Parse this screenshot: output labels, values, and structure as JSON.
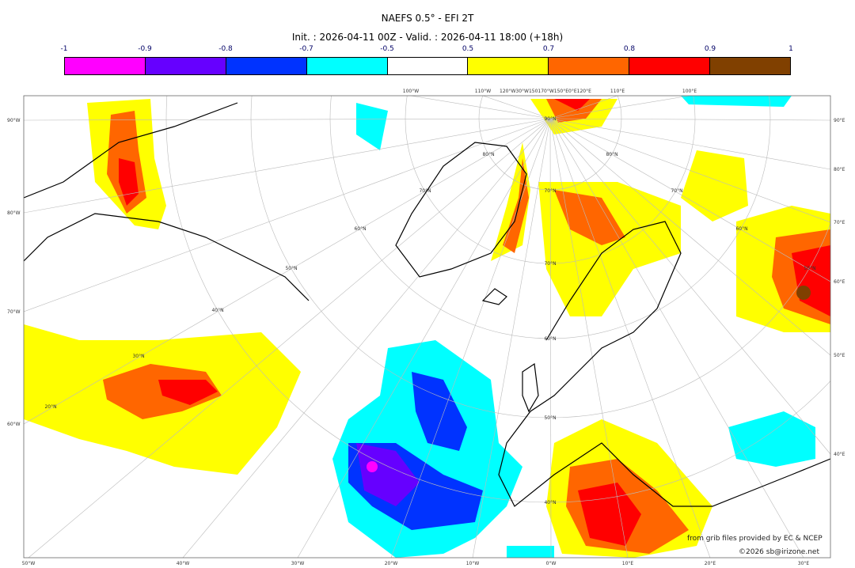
{
  "title": "NAEFS 0.5° - EFI 2T",
  "subtitle": "Init. : 2026-04-11 00Z - Valid. : 2026-04-11 18:00 (+18h)",
  "colorbar": {
    "ticks": [
      "-1",
      "-0.9",
      "-0.8",
      "-0.7",
      "-0.5",
      "0.5",
      "0.7",
      "0.8",
      "0.9",
      "1"
    ],
    "colors": [
      "#ff00ff",
      "#6600ff",
      "#0033ff",
      "#00ffff",
      "#ffffff",
      "#ffff00",
      "#ff6600",
      "#ff0000",
      "#804000"
    ]
  },
  "map": {
    "left_labels": [
      "90°W",
      "80°W",
      "70°W",
      "60°W"
    ],
    "right_labels": [
      "90°E",
      "80°E",
      "70°E",
      "60°E",
      "50°E",
      "40°E"
    ],
    "bottom_labels": [
      "50°W",
      "40°W",
      "30°W",
      "20°W",
      "10°W",
      "0°W",
      "10°E",
      "20°E",
      "30°E"
    ],
    "top_labels": [
      "100°W",
      "110°W",
      "120°W30°W150170°W150°E0°E120°E",
      "110°E",
      "100°E"
    ],
    "lat_labels": [
      "90°N",
      "80°N",
      "80°N",
      "70°N",
      "70°N",
      "70°N",
      "60°N",
      "60°N",
      "50°N",
      "50°N",
      "40°N",
      "30°N",
      "20°N",
      "70°N",
      "60°N",
      "50°N",
      "40°N"
    ]
  },
  "credits": {
    "source": "from grib files provided by EC & NCEP",
    "copyright": "©2026 sb@irizone.net"
  }
}
